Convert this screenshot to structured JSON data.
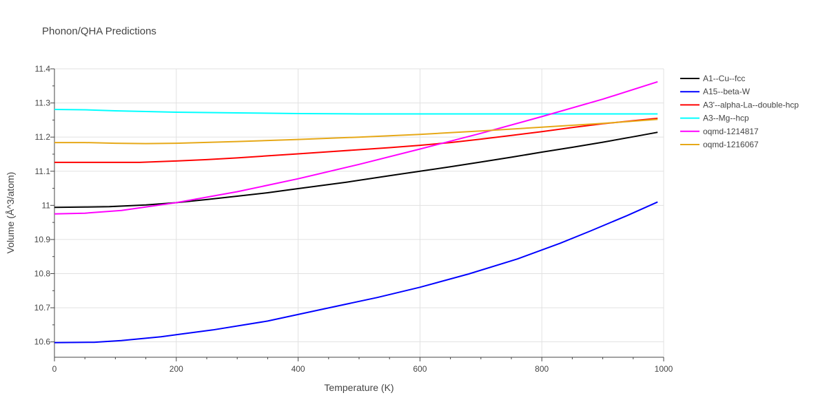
{
  "chart_data": {
    "type": "line",
    "title": "Phonon/QHA Predictions",
    "xlabel": "Temperature (K)",
    "ylabel": "Volume (Å^3/atom)",
    "xlim": [
      0,
      1000
    ],
    "ylim": [
      10.555,
      11.4
    ],
    "x_ticks": [
      0,
      200,
      400,
      600,
      800,
      1000
    ],
    "x_tick_labels": [
      "0",
      "200",
      "400",
      "600",
      "800",
      "1000"
    ],
    "y_ticks": [
      10.6,
      10.7,
      10.8,
      10.9,
      11.0,
      11.1,
      11.2,
      11.3,
      11.4
    ],
    "y_tick_labels": [
      "10.6",
      "10.7",
      "10.8",
      "10.9",
      "11",
      "11.1",
      "11.2",
      "11.3",
      "11.4"
    ],
    "grid": true,
    "legend_position": "right",
    "series": [
      {
        "name": "A1--Cu--fcc",
        "color": "#000000",
        "x": [
          0,
          50,
          90,
          150,
          200,
          250,
          300,
          350,
          400,
          480,
          550,
          600,
          650,
          700,
          750,
          800,
          850,
          900,
          950,
          990
        ],
        "y": [
          10.994,
          10.995,
          10.996,
          11.001,
          11.008,
          11.017,
          11.027,
          11.037,
          11.049,
          11.068,
          11.087,
          11.1,
          11.113,
          11.127,
          11.141,
          11.156,
          11.17,
          11.185,
          11.201,
          11.214
        ]
      },
      {
        "name": "A15--beta-W",
        "color": "#0000ff",
        "x": [
          0,
          65,
          110,
          175,
          200,
          260,
          350,
          430,
          530,
          600,
          680,
          760,
          830,
          880,
          940,
          990
        ],
        "y": [
          10.598,
          10.599,
          10.604,
          10.615,
          10.621,
          10.635,
          10.661,
          10.692,
          10.73,
          10.76,
          10.799,
          10.843,
          10.889,
          10.925,
          10.97,
          11.01
        ]
      },
      {
        "name": "A3'--alpha-La--double-hcp",
        "color": "#ff0000",
        "x": [
          0,
          50,
          100,
          140,
          200,
          250,
          300,
          350,
          400,
          450,
          500,
          550,
          600,
          650,
          700,
          750,
          800,
          850,
          900,
          950,
          990
        ],
        "y": [
          11.126,
          11.126,
          11.126,
          11.126,
          11.13,
          11.134,
          11.139,
          11.145,
          11.151,
          11.157,
          11.163,
          11.169,
          11.176,
          11.184,
          11.194,
          11.205,
          11.216,
          11.228,
          11.239,
          11.248,
          11.255
        ]
      },
      {
        "name": "A3--Mg--hcp",
        "color": "#00ffff",
        "x": [
          0,
          50,
          100,
          150,
          200,
          300,
          400,
          500,
          600,
          700,
          800,
          900,
          990
        ],
        "y": [
          11.281,
          11.28,
          11.277,
          11.275,
          11.273,
          11.271,
          11.269,
          11.268,
          11.268,
          11.268,
          11.268,
          11.268,
          11.268
        ]
      },
      {
        "name": "oqmd-1214817",
        "color": "#ff00ff",
        "x": [
          0,
          50,
          110,
          200,
          300,
          400,
          500,
          600,
          700,
          800,
          900,
          990
        ],
        "y": [
          10.975,
          10.977,
          10.985,
          11.008,
          11.04,
          11.078,
          11.12,
          11.165,
          11.211,
          11.26,
          11.311,
          11.362
        ]
      },
      {
        "name": "oqmd-1216067",
        "color": "#e6a817",
        "x": [
          0,
          50,
          100,
          150,
          200,
          300,
          400,
          500,
          600,
          700,
          800,
          900,
          990
        ],
        "y": [
          11.184,
          11.184,
          11.182,
          11.181,
          11.182,
          11.187,
          11.193,
          11.2,
          11.208,
          11.218,
          11.229,
          11.24,
          11.252
        ]
      }
    ]
  }
}
